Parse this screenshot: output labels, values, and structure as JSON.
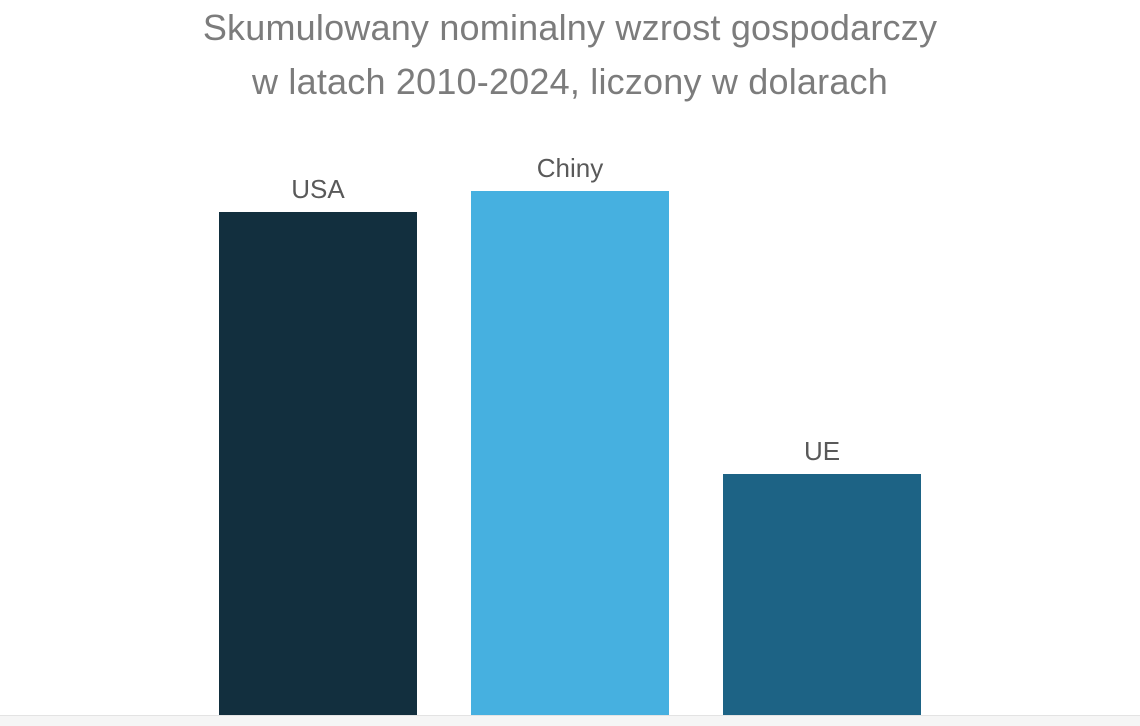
{
  "chart_data": {
    "type": "bar",
    "title": "Skumulowany nominalny wzrost gospodarczy w latach 2010-2024, liczony w dolarach",
    "title_lines": [
      "Skumulowany nominalny wzrost gospodarczy",
      "w latach 2010-2024, liczony w dolarach"
    ],
    "categories": [
      "USA",
      "Chiny",
      "UE"
    ],
    "values": [
      96,
      100,
      46
    ],
    "value_note": "relative heights, % of tallest bar; no value axis or data labels shown",
    "bar_colors": [
      "#122F3E",
      "#46B0E0",
      "#1D6385"
    ],
    "title_color": "#7C7C7C",
    "label_color": "#595959",
    "xlabel": "",
    "ylabel": "",
    "grid": false,
    "legend": false,
    "axes_visible": false,
    "label_position": "above-bar"
  }
}
